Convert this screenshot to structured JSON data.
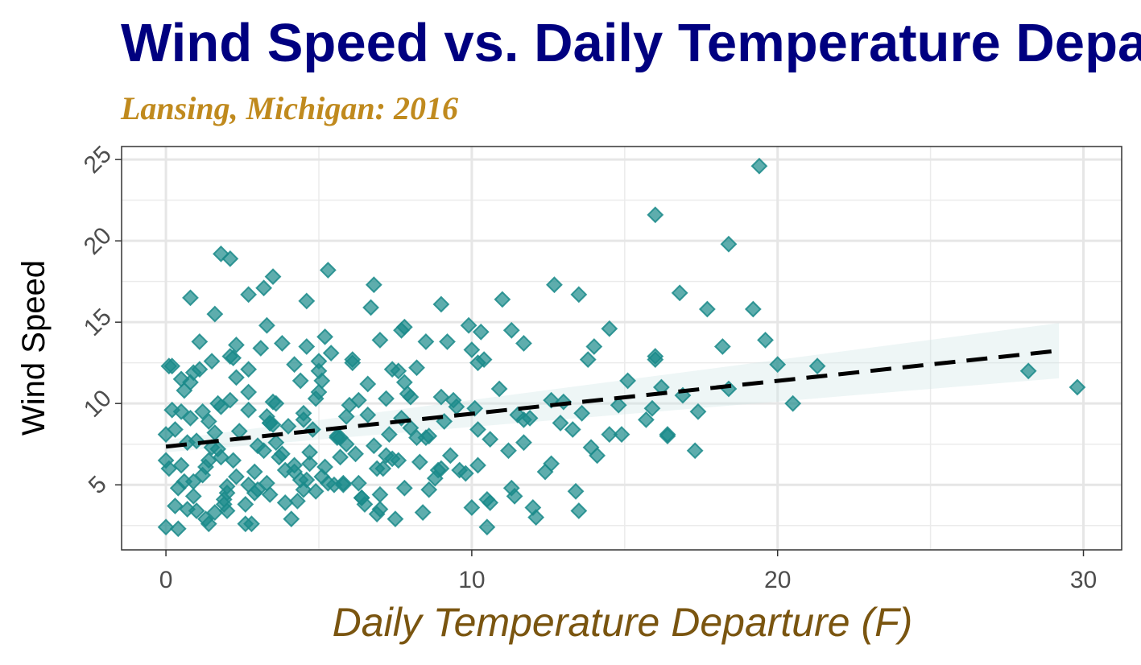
{
  "chart_data": {
    "type": "scatter",
    "title": "Wind Speed vs. Daily Temperature Departure",
    "subtitle": "Lansing, Michigan: 2016",
    "xlabel": "Daily Temperature Departure (F)",
    "ylabel": "Wind Speed",
    "xlim": [
      -1.45,
      31.25
    ],
    "ylim": [
      1.0,
      25.8
    ],
    "x_ticks": [
      0,
      10,
      20,
      30
    ],
    "y_ticks": [
      5,
      10,
      15,
      20,
      25
    ],
    "x_tick_labels": [
      "0",
      "10",
      "20",
      "30"
    ],
    "y_tick_labels": [
      "5",
      "10",
      "15",
      "20",
      "25"
    ],
    "grid": true,
    "marker": "diamond",
    "colors": {
      "title": "#000080",
      "subtitle": "#c08a1e",
      "xlabel": "#7a5510",
      "points": "#1a8a8a",
      "trend": "#000000",
      "band": "#cfe6e6"
    },
    "trend_line": {
      "style": "dashed",
      "x": [
        0,
        29.2
      ],
      "y": [
        7.35,
        13.25
      ],
      "ci_lower_end": [
        7.0,
        11.55
      ],
      "ci_upper_end": [
        7.75,
        14.95
      ]
    },
    "x": [
      0.0,
      0.2,
      0.3,
      0.5,
      0.6,
      0.8,
      0.9,
      1.0,
      1.1,
      1.2,
      1.4,
      1.5,
      1.6,
      1.7,
      1.8,
      2.0,
      2.1,
      2.2,
      2.4,
      2.6,
      2.7,
      2.9,
      3.1,
      3.2,
      3.4,
      3.5,
      3.7,
      3.9,
      4.0,
      4.2,
      4.4,
      4.5,
      4.7,
      4.9,
      5.0,
      5.2,
      5.4,
      5.6,
      5.8,
      6.0,
      6.2,
      6.4,
      6.6,
      6.8,
      7.0,
      7.2,
      7.4,
      7.6,
      7.8,
      8.0,
      8.2,
      8.5,
      8.8,
      9.0,
      9.3,
      9.6,
      10.0,
      10.2,
      10.5,
      10.9,
      11.3,
      11.7,
      12.1,
      12.6,
      13.0,
      13.4,
      13.9,
      14.5,
      15.1,
      15.9,
      16.4,
      17.3,
      18.4,
      0.0,
      0.4,
      0.7,
      1.0,
      1.3,
      1.6,
      1.9,
      2.3,
      2.8,
      3.3,
      3.8,
      4.3,
      4.8,
      5.3,
      5.9,
      6.5,
      7.1,
      7.7,
      8.4,
      9.1,
      9.8,
      10.6,
      11.5,
      12.4,
      13.5,
      14.8,
      16.2,
      0.1,
      0.5,
      0.9,
      1.3,
      1.8,
      2.3,
      2.9,
      3.5,
      4.2,
      4.9,
      5.6,
      6.4,
      7.3,
      8.3,
      9.4,
      10.6,
      12.0,
      13.6,
      0.3,
      0.8,
      1.4,
      2.0,
      2.7,
      3.4,
      4.2,
      5.0,
      5.9,
      6.9,
      8.0,
      9.2,
      10.5,
      0.2,
      0.6,
      1.1,
      1.5,
      2.1,
      2.6,
      3.0,
      3.6,
      4.1,
      4.6,
      5.1,
      5.7,
      6.3,
      7.0,
      7.9,
      9.0,
      10.1,
      11.2,
      0.0,
      0.9,
      2.2,
      3.4,
      4.7,
      6.1,
      7.5,
      0.5,
      1.2,
      1.9,
      2.7,
      3.6,
      4.5,
      5.5,
      6.6,
      7.8,
      8.9,
      10.4,
      11.7,
      12.9,
      0.4,
      1.7,
      3.0,
      4.4,
      5.8,
      7.2,
      8.6,
      10.0,
      11.4,
      1.8,
      2.1,
      3.5,
      5.3,
      6.8,
      0.8,
      1.6,
      2.7,
      3.2,
      4.6,
      6.7,
      7.7,
      9.0,
      9.9,
      11.0,
      12.7,
      13.5,
      3.3,
      4.6,
      5.2,
      7.0,
      7.8,
      10.3,
      11.3,
      14.0,
      14.5,
      16.0,
      17.7,
      19.6,
      21.3,
      0.1,
      2.3,
      3.8,
      5.0,
      6.1,
      7.4,
      8.5,
      10.2,
      11.7,
      13.8,
      16.0,
      16.8,
      18.2,
      20.0,
      28.2,
      29.8,
      16.0,
      18.4,
      19.2,
      19.4,
      16.9,
      20.5,
      17.4,
      16.4,
      15.7,
      14.9,
      14.1,
      13.3,
      12.6,
      11.9,
      10.2,
      9.5,
      8.6,
      8.2,
      7.6,
      6.9,
      6.3,
      5.7,
      5.1,
      4.5,
      3.9,
      3.3,
      2.7,
      2.0,
      1.4,
      0.7
    ],
    "y": [
      2.4,
      12.3,
      8.4,
      6.2,
      10.8,
      9.1,
      4.3,
      7.7,
      13.8,
      5.6,
      8.9,
      12.6,
      3.3,
      7.2,
      9.8,
      4.9,
      12.9,
      6.5,
      8.3,
      3.8,
      9.6,
      5.8,
      13.4,
      7.1,
      4.4,
      10.1,
      6.7,
      3.9,
      8.6,
      12.4,
      5.3,
      9.4,
      7.0,
      4.6,
      10.7,
      6.1,
      13.1,
      8.0,
      5.0,
      9.9,
      6.9,
      4.2,
      11.2,
      7.4,
      3.5,
      10.3,
      6.6,
      12.0,
      4.8,
      8.5,
      12.2,
      7.9,
      5.4,
      10.4,
      6.8,
      5.9,
      3.6,
      6.2,
      2.4,
      10.9,
      4.8,
      9.0,
      3.0,
      6.3,
      10.1,
      4.6,
      7.3,
      8.1,
      11.4,
      9.7,
      8.1,
      7.1,
      10.9,
      8.1,
      4.8,
      7.6,
      3.4,
      6.1,
      8.2,
      4.1,
      5.5,
      2.6,
      9.2,
      6.9,
      4.0,
      8.4,
      5.1,
      7.5,
      3.8,
      6.0,
      9.1,
      3.3,
      8.9,
      5.7,
      3.9,
      9.3,
      5.8,
      3.4,
      9.9,
      11.0,
      6.0,
      9.5,
      5.2,
      2.9,
      6.7,
      11.6,
      4.5,
      8.7,
      6.2,
      10.3,
      7.9,
      4.2,
      8.1,
      6.4,
      10.2,
      7.8,
      3.6,
      9.4,
      3.7,
      11.3,
      6.5,
      3.4,
      12.1,
      8.8,
      5.8,
      12.6,
      9.2,
      3.2,
      10.4,
      13.8,
      4.1,
      9.6,
      5.2,
      12.1,
      7.3,
      10.2,
      2.6,
      7.4,
      10.0,
      2.9,
      5.3,
      11.4,
      7.9,
      10.2,
      4.4,
      10.6,
      6.0,
      9.7,
      7.1,
      6.5,
      11.9,
      12.8,
      8.8,
      6.3,
      12.5,
      2.9,
      11.5,
      9.5,
      3.8,
      10.7,
      7.6,
      9.0,
      5.0,
      9.3,
      11.3,
      5.9,
      12.7,
      7.6,
      8.8,
      2.3,
      10.0,
      4.7,
      11.4,
      5.1,
      6.8,
      4.7,
      13.3,
      4.3,
      19.2,
      18.9,
      17.8,
      18.2,
      17.3,
      16.5,
      15.5,
      16.7,
      17.1,
      16.3,
      15.9,
      14.5,
      16.1,
      14.8,
      16.4,
      17.3,
      16.7,
      14.8,
      13.5,
      14.1,
      13.9,
      14.7,
      14.4,
      14.5,
      13.5,
      14.6,
      12.7,
      15.8,
      13.9,
      12.3,
      12.3,
      13.6,
      13.7,
      12.0,
      12.7,
      12.1,
      13.8,
      12.5,
      13.7,
      12.7,
      12.9,
      16.8,
      13.5,
      12.4,
      12.0,
      11.0,
      21.6,
      19.8,
      15.8,
      24.6,
      10.5,
      10.0,
      9.5,
      8.0,
      9.0,
      8.1,
      6.8,
      8.4,
      10.2,
      9.1,
      8.4,
      9.8,
      8.0,
      7.9,
      6.5,
      6.0,
      5.1,
      6.7,
      5.5,
      4.7,
      5.9,
      5.1,
      5.0,
      4.5,
      2.6,
      3.5
    ],
    "series": [
      {
        "name": "",
        "marker_size": 9
      }
    ]
  }
}
